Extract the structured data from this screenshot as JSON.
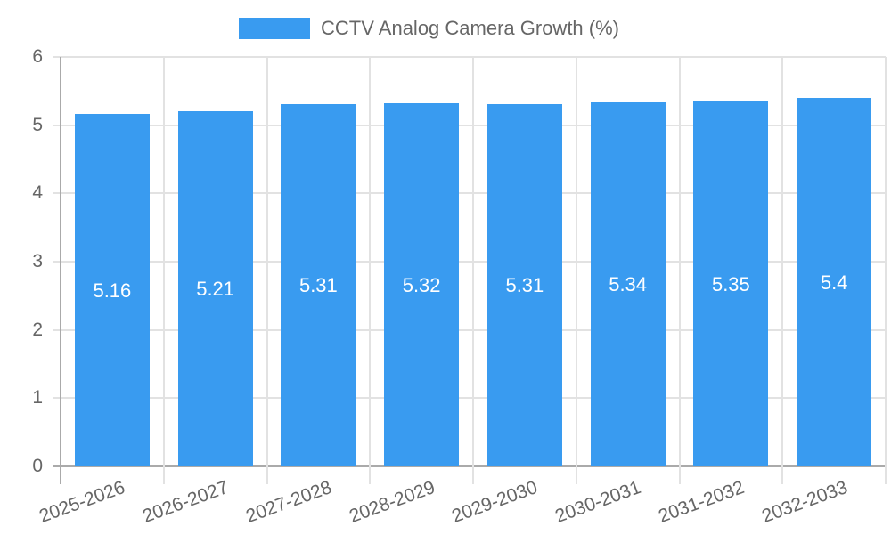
{
  "chart_data": {
    "type": "bar",
    "title": "",
    "legend": [
      {
        "label": "CCTV Analog Camera Growth (%)",
        "color": "#399bf0"
      }
    ],
    "legend_position": "top",
    "categories": [
      "2025-2026",
      "2026-2027",
      "2027-2028",
      "2028-2029",
      "2029-2030",
      "2030-2031",
      "2031-2032",
      "2032-2033"
    ],
    "series": [
      {
        "name": "CCTV Analog Camera Growth (%)",
        "values": [
          5.16,
          5.21,
          5.31,
          5.32,
          5.31,
          5.34,
          5.35,
          5.4
        ],
        "color": "#399bf0"
      }
    ],
    "data_labels": [
      "5.16",
      "5.21",
      "5.31",
      "5.32",
      "5.31",
      "5.34",
      "5.35",
      "5.4"
    ],
    "xlabel": "",
    "ylabel": "",
    "ylim": [
      0,
      6
    ],
    "yticks": [
      "0",
      "1",
      "2",
      "3",
      "4",
      "5",
      "6"
    ],
    "grid": true
  }
}
